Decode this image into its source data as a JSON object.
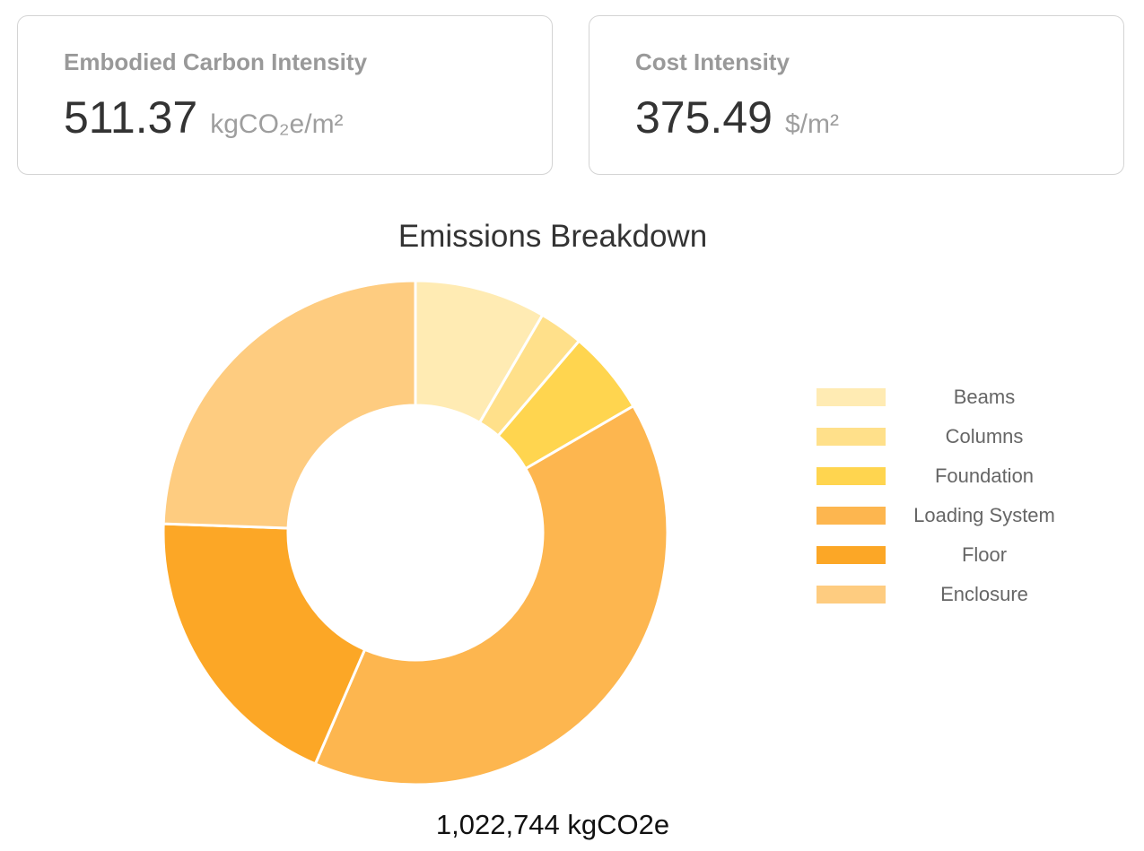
{
  "cards": {
    "carbon": {
      "label": "Embodied Carbon Intensity",
      "value": "511.37",
      "unit": "kgCO₂e/m²"
    },
    "cost": {
      "label": "Cost Intensity",
      "value": "375.49",
      "unit": "$/m²"
    }
  },
  "chart_data": {
    "type": "pie",
    "variant": "donut",
    "title": "Emissions Breakdown",
    "categories": [
      "Beams",
      "Columns",
      "Foundation",
      "Loading System",
      "Floor",
      "Enclosure"
    ],
    "values": [
      86000,
      29000,
      55000,
      408000,
      195000,
      250000
    ],
    "colors": [
      "#FFEBB3",
      "#FFE08A",
      "#FFD54F",
      "#FDB64F",
      "#FCA726",
      "#FECC80"
    ],
    "legend_position": "right",
    "total_label": "1,022,744 kgCO2e"
  }
}
